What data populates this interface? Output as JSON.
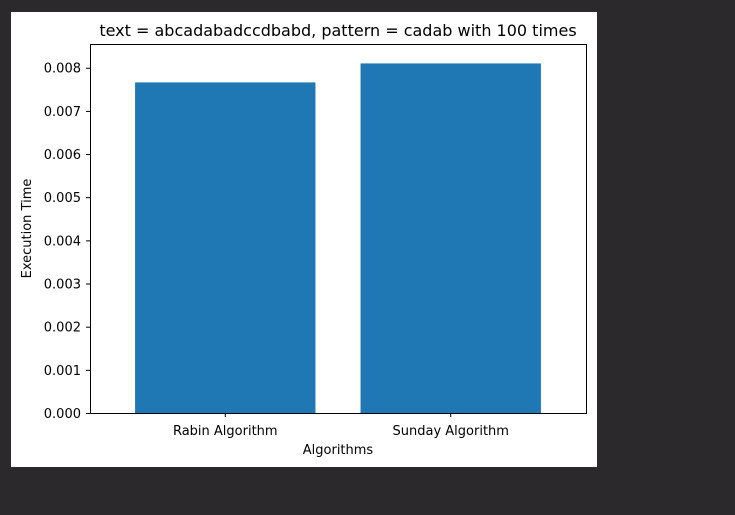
{
  "window": {
    "background": "#2b292c"
  },
  "chart_data": {
    "type": "bar",
    "title": "text = abcadabadccdbabd, pattern = cadab  with 100 times",
    "xlabel": "Algorithms",
    "ylabel": "Execution Time",
    "categories": [
      "Rabin Algorithm",
      "Sunday Algorithm"
    ],
    "values": [
      0.00766,
      0.0081
    ],
    "ylim": [
      0,
      0.00855
    ],
    "yticks": [
      "0.000",
      "0.001",
      "0.002",
      "0.003",
      "0.004",
      "0.005",
      "0.006",
      "0.007",
      "0.008"
    ],
    "ytick_values": [
      0,
      0.001,
      0.002,
      0.003,
      0.004,
      0.005,
      0.006,
      0.007,
      0.008
    ],
    "bar_color": "#1f77b4",
    "grid": false,
    "legend": "none"
  }
}
